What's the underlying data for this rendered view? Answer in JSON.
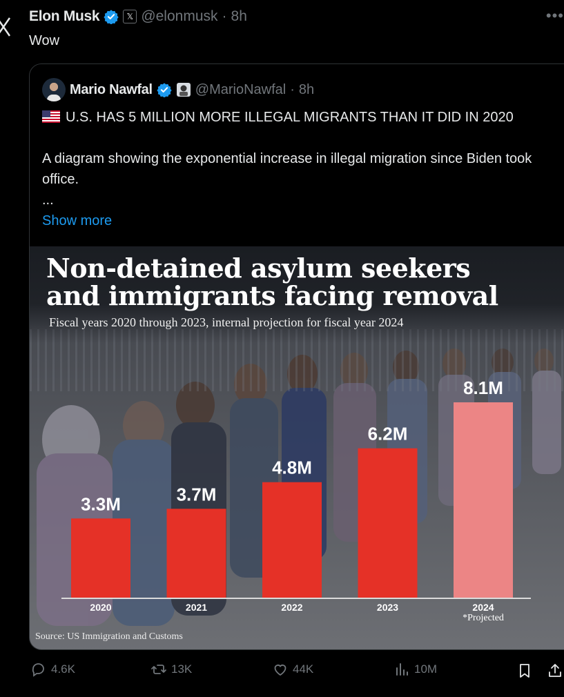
{
  "post": {
    "author_name": "Elon Musk",
    "handle": "@elonmusk",
    "time": "8h",
    "text": "Wow"
  },
  "quote": {
    "author_name": "Mario Nawfal",
    "handle": "@MarioNawfal",
    "time": "8h",
    "headline": "U.S. HAS 5 MILLION MORE ILLEGAL MIGRANTS THAN IT DID IN 2020",
    "body": "A diagram showing the exponential increase in illegal migration since Biden took office.",
    "ellipsis": "...",
    "show_more": "Show more"
  },
  "chart_data": {
    "type": "bar",
    "title": "Non-detained asylum seekers\nand immigrants facing removal",
    "subtitle": "Fiscal years 2020 through 2023, internal projection for fiscal year 2024",
    "source": "Source: US Immigration and Customs",
    "categories": [
      "2020",
      "2021",
      "2022",
      "2023",
      "2024"
    ],
    "values": [
      3.3,
      3.7,
      4.8,
      6.2,
      8.1
    ],
    "value_labels": [
      "3.3M",
      "3.7M",
      "4.8M",
      "6.2M",
      "8.1M"
    ],
    "note": "*Projected",
    "note_category": "2024",
    "ylim": [
      0,
      8.1
    ],
    "colors": {
      "actual": "#e53127",
      "projected": "#ec8585"
    },
    "xlabel": "",
    "ylabel": ""
  },
  "actions": {
    "replies": "4.6K",
    "reposts": "13K",
    "likes": "44K",
    "views": "10M"
  },
  "icons": [
    "x-logo-icon",
    "verified-icon",
    "x-affiliate-icon",
    "more-icon",
    "us-flag-icon",
    "reply-icon",
    "repost-icon",
    "like-icon",
    "views-icon",
    "bookmark-icon",
    "share-icon"
  ]
}
